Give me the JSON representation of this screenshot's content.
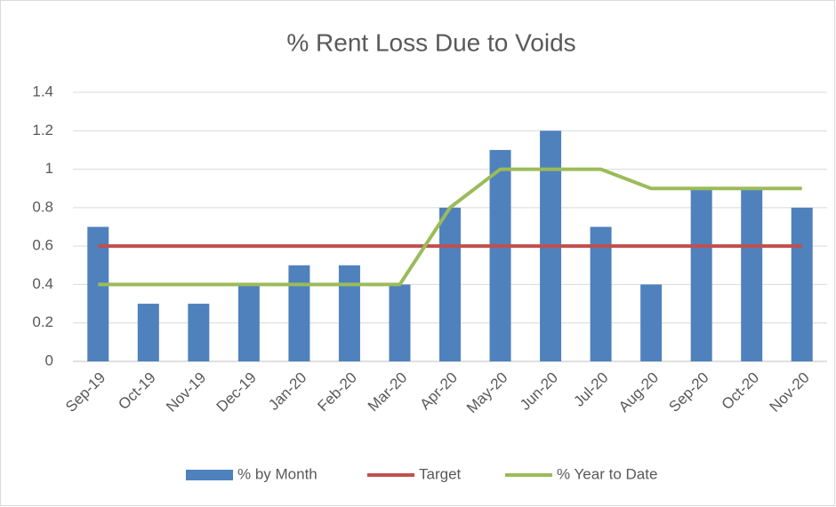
{
  "chart_data": {
    "type": "bar",
    "title": "% Rent Loss Due to Voids",
    "categories": [
      "Sep-19",
      "Oct-19",
      "Nov-19",
      "Dec-19",
      "Jan-20",
      "Feb-20",
      "Mar-20",
      "Apr-20",
      "May-20",
      "Jun-20",
      "Jul-20",
      "Aug-20",
      "Sep-20",
      "Oct-20",
      "Nov-20"
    ],
    "series": [
      {
        "name": "% by Month",
        "type": "bar",
        "color": "#4f81bd",
        "values": [
          0.7,
          0.3,
          0.3,
          0.4,
          0.5,
          0.5,
          0.4,
          0.8,
          1.1,
          1.2,
          0.7,
          0.4,
          0.9,
          0.9,
          0.8
        ]
      },
      {
        "name": "Target",
        "type": "line",
        "color": "#c0504d",
        "values": [
          0.6,
          0.6,
          0.6,
          0.6,
          0.6,
          0.6,
          0.6,
          0.6,
          0.6,
          0.6,
          0.6,
          0.6,
          0.6,
          0.6,
          0.6
        ]
      },
      {
        "name": "% Year to Date",
        "type": "line",
        "color": "#9bbb59",
        "values": [
          0.4,
          0.4,
          0.4,
          0.4,
          0.4,
          0.4,
          0.4,
          0.8,
          1,
          1,
          1,
          0.9,
          0.9,
          0.9,
          0.9
        ]
      }
    ],
    "ylim": [
      0,
      1.4
    ],
    "yticks": [
      0,
      0.2,
      0.4,
      0.6,
      0.8,
      1,
      1.2,
      1.4
    ],
    "grid": true,
    "legend": "bottom"
  }
}
